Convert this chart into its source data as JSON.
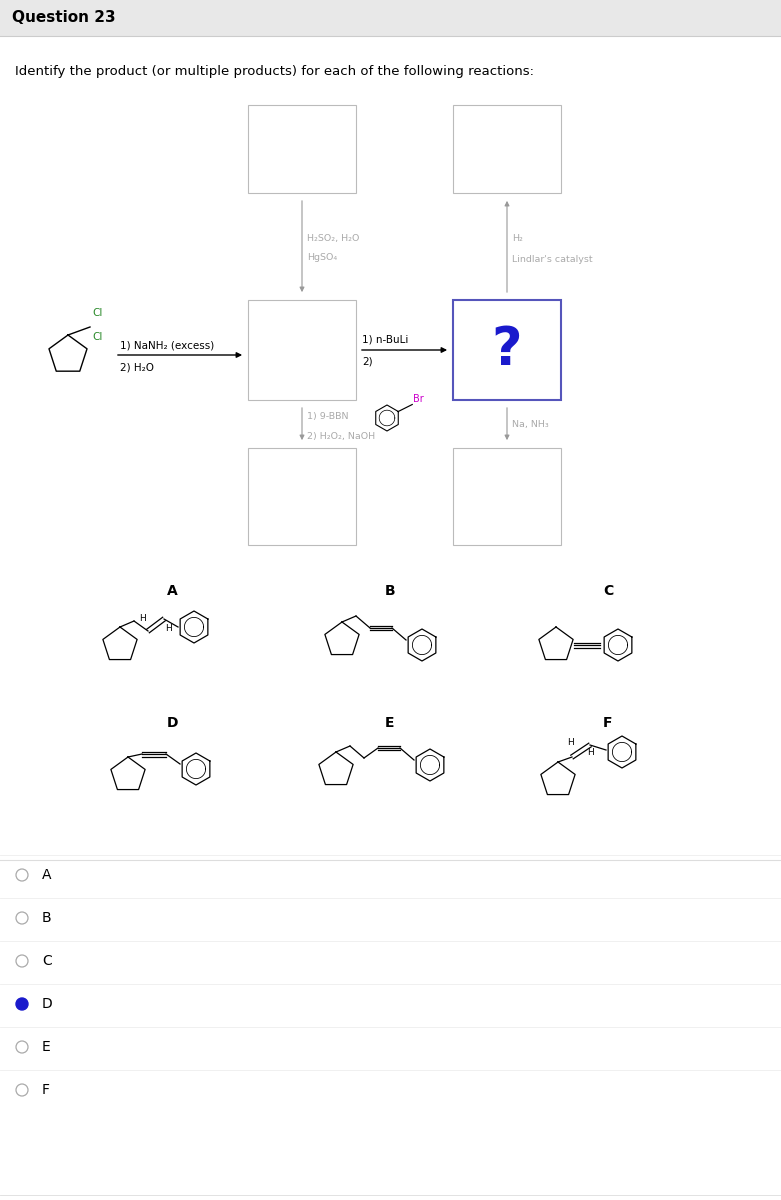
{
  "title": "Question 23",
  "subtitle": "Identify the product (or multiple products) for each of the following reactions:",
  "bg_color": "#ffffff",
  "header_bg": "#e8e8e8",
  "box_edge_color": "#bbbbbb",
  "question_box_edge": "#5555bb",
  "green_color": "#2a8a2a",
  "blue_color": "#1a1acc",
  "magenta_color": "#cc00cc",
  "gray_color": "#aaaaaa",
  "radio_options": [
    "A",
    "B",
    "C",
    "D",
    "E",
    "F"
  ],
  "selected_option": "D"
}
